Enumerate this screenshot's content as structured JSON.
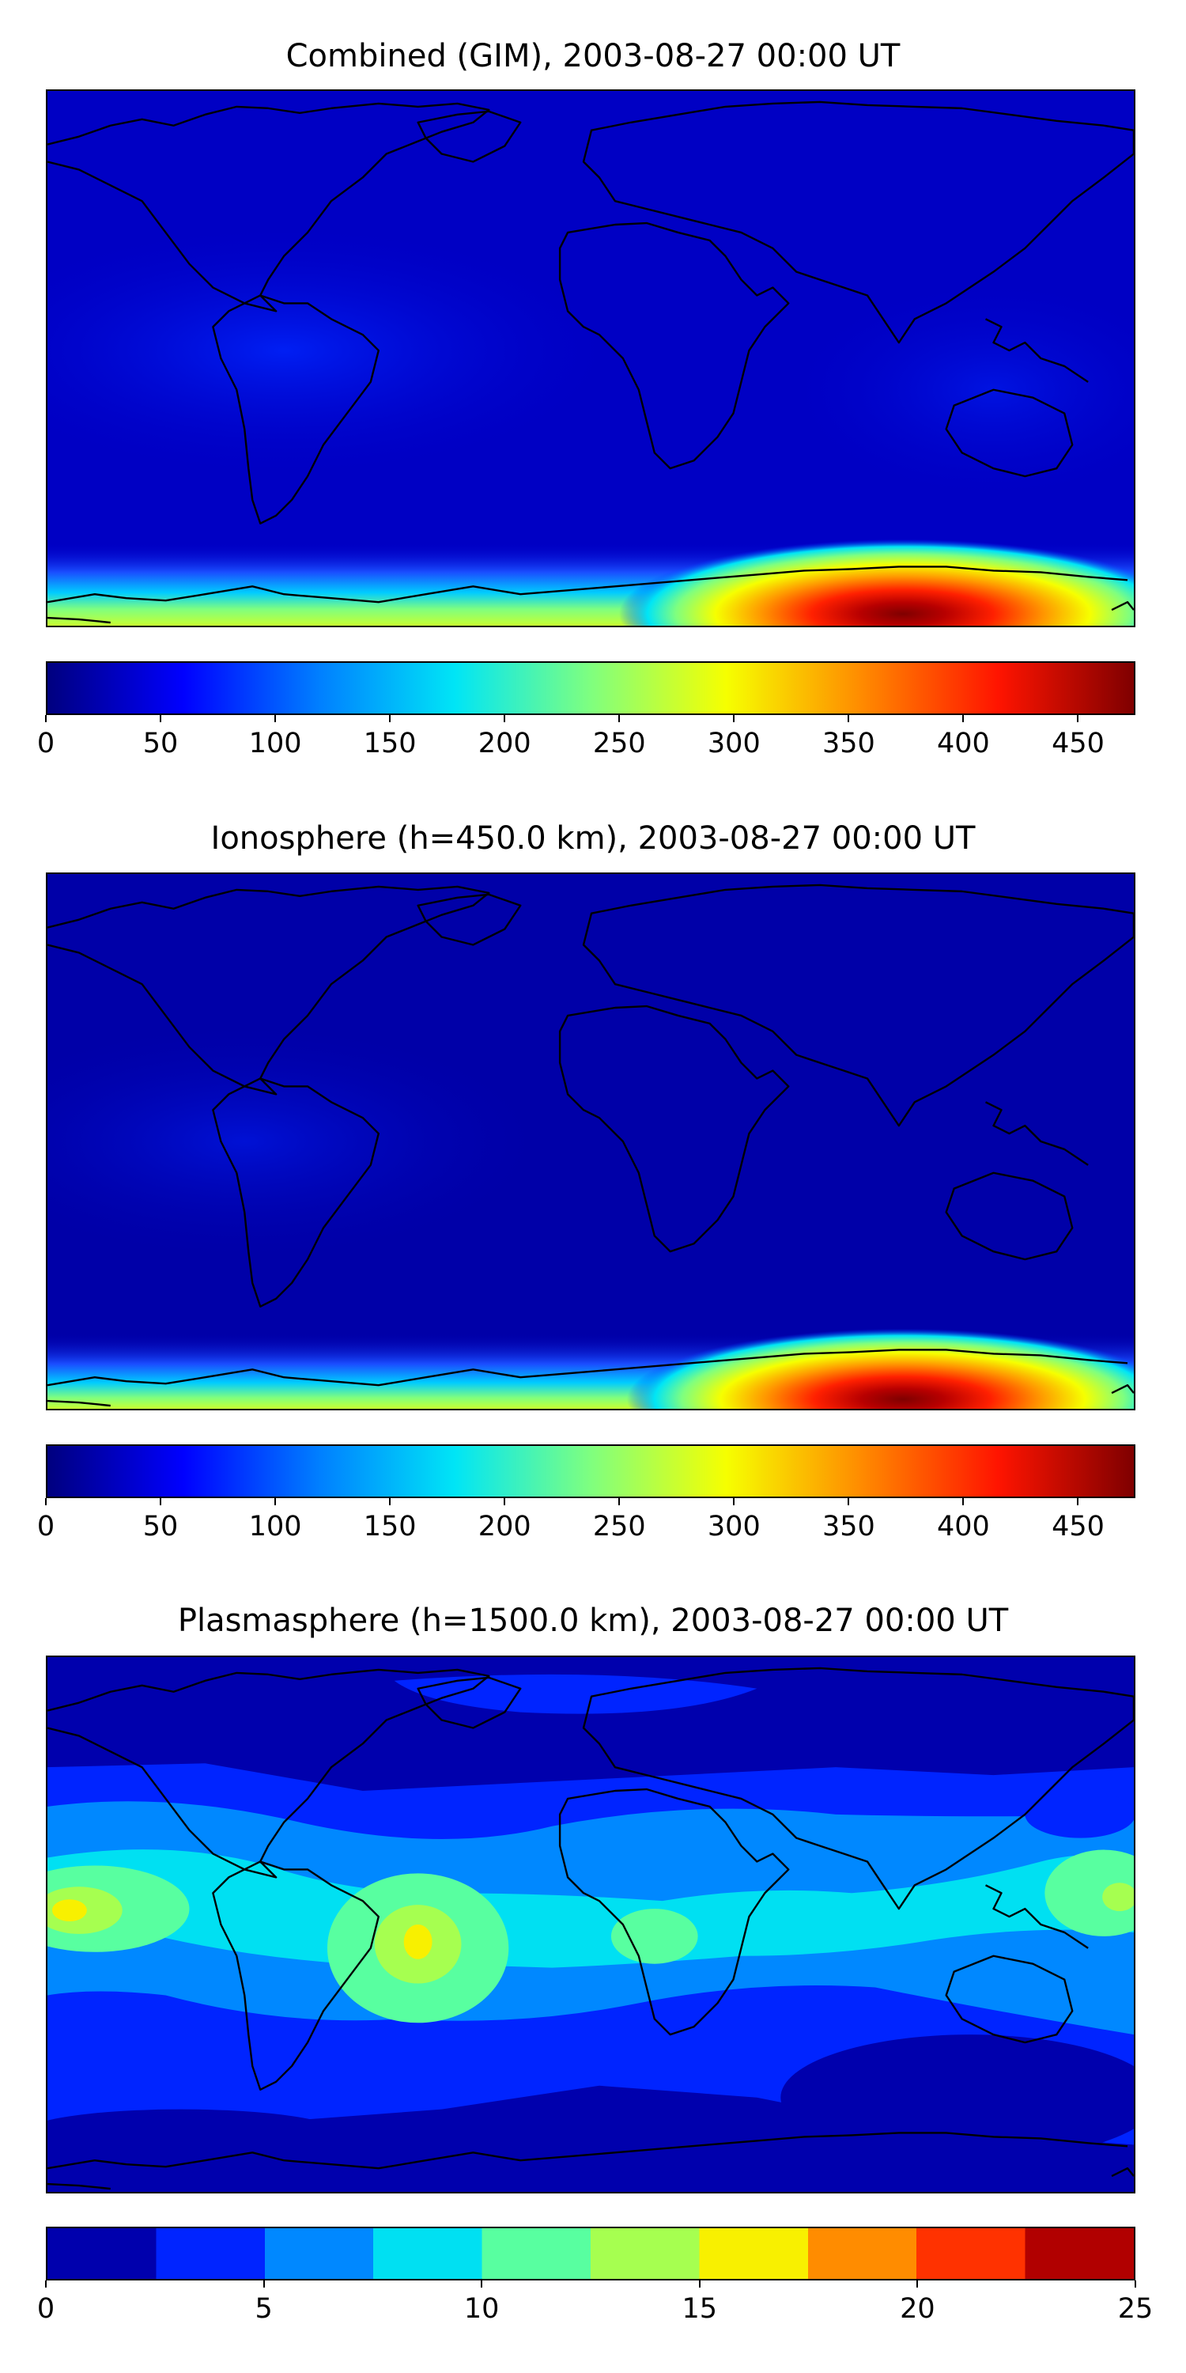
{
  "chart_data": [
    {
      "type": "heatmap",
      "title": "Combined (GIM), 2003-08-27 00:00 UT",
      "colormap": "jet",
      "vlim": [
        0,
        475
      ],
      "colorbar_ticks": [
        "0",
        "50",
        "100",
        "150",
        "200",
        "250",
        "300",
        "350",
        "400",
        "450"
      ],
      "colorbar_tick_values": [
        0,
        50,
        100,
        150,
        200,
        250,
        300,
        350,
        400,
        450
      ],
      "features": [
        {
          "name": "south-polar-maximum",
          "lon": 100,
          "lat": -87,
          "value": 470
        },
        {
          "name": "south-polar-band",
          "lat_range": [
            -90,
            -75
          ],
          "value_range": [
            120,
            300
          ]
        }
      ],
      "background_value": 30,
      "coastlines": true
    },
    {
      "type": "heatmap",
      "title": "Ionosphere  (h=450.0 km), 2003-08-27 00:00 UT",
      "colormap": "jet",
      "vlim": [
        0,
        475
      ],
      "colorbar_ticks": [
        "0",
        "50",
        "100",
        "150",
        "200",
        "250",
        "300",
        "350",
        "400",
        "450"
      ],
      "colorbar_tick_values": [
        0,
        50,
        100,
        150,
        200,
        250,
        300,
        350,
        400,
        450
      ],
      "features": [
        {
          "name": "south-polar-maximum",
          "lon": 100,
          "lat": -87,
          "value": 470
        },
        {
          "name": "south-polar-band",
          "lat_range": [
            -90,
            -75
          ],
          "value_range": [
            120,
            300
          ]
        }
      ],
      "background_value": 20,
      "coastlines": true
    },
    {
      "type": "heatmap",
      "title": "Plasmasphere (h=1500.0 km), 2003-08-27 00:00 UT",
      "colormap": "jet",
      "discrete_levels": [
        0,
        2.5,
        5,
        7.5,
        10,
        12.5,
        15,
        17.5,
        20,
        22.5,
        25
      ],
      "vlim": [
        0,
        25
      ],
      "colorbar_ticks": [
        "0",
        "5",
        "10",
        "15",
        "20",
        "25"
      ],
      "colorbar_tick_values": [
        0,
        5,
        10,
        15,
        20,
        25
      ],
      "features": [
        {
          "name": "maximum-south-america",
          "lon": -58,
          "lat": -13,
          "value": 16
        },
        {
          "name": "maximum-east-pacific",
          "lon": -177,
          "lat": -2,
          "value": 16
        },
        {
          "name": "maximum-west-pacific",
          "lon": 175,
          "lat": -2,
          "value": 14
        },
        {
          "name": "maximum-central-africa",
          "lon": 18,
          "lat": -10,
          "value": 13
        },
        {
          "name": "low-latitude-band",
          "lat_range": [
            -35,
            20
          ],
          "value_range": [
            7.5,
            12.5
          ]
        }
      ],
      "background_value": 2,
      "coastlines": true
    }
  ],
  "colors": {
    "jet_stops": [
      "#00007f",
      "#0000ff",
      "#007fff",
      "#00e5f6",
      "#7fff7f",
      "#f6ff00",
      "#ff8a00",
      "#ff1400",
      "#7f0000"
    ],
    "discrete_bins": [
      "#0000ad",
      "#0024ff",
      "#0088ff",
      "#00e0f2",
      "#58ffa0",
      "#a6ff50",
      "#f8f000",
      "#ff8c00",
      "#ff3200",
      "#b10000"
    ],
    "coastline": "#000000"
  }
}
